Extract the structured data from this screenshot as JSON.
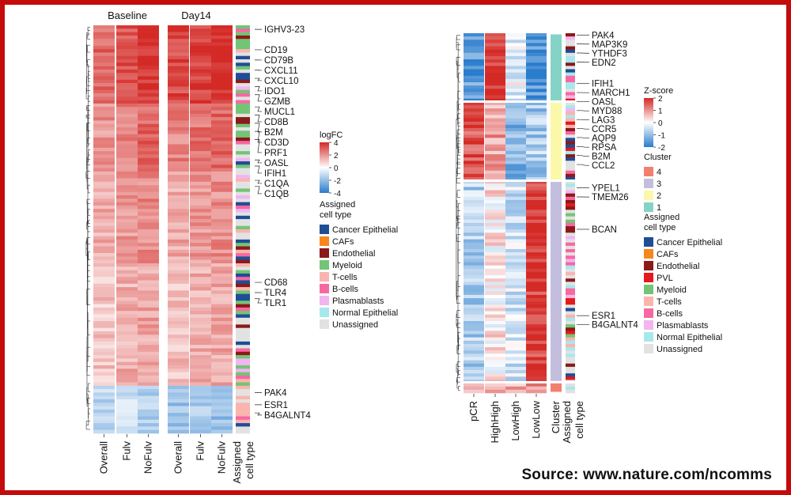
{
  "source": "Source: www.nature.com/ncomms",
  "colors": {
    "frame": "#c40b0b",
    "heat_high": "#d42a26",
    "heat_mid": "#ffffff",
    "heat_low": "#2a7ccd",
    "cell_types": {
      "Cancer Epithelial": "#1f4e96",
      "CAFs": "#f7861c",
      "Endothelial": "#8b1a1a",
      "PVL": "#e41a1c",
      "Myeloid": "#74c476",
      "T-cells": "#fbb4ae",
      "B-cells": "#f768a1",
      "Plasmablasts": "#f2b5f0",
      "Normal Epithelial": "#a6e8ee",
      "Unassigned": "#e2e2e2"
    },
    "clusters": {
      "4": "#f47f6e",
      "3": "#c3bede",
      "2": "#fbf8aa",
      "1": "#85d3c6"
    }
  },
  "chart_data": [
    {
      "type": "heatmap",
      "panel": "left",
      "title_groups": [
        "Baseline",
        "Day14"
      ],
      "columns": [
        "Overall",
        "Fulv",
        "NoFulv"
      ],
      "annotation_column_label": "Assigned\ncell type",
      "legend": {
        "title": "logFC",
        "ticks": [
          4,
          2,
          0,
          -2,
          -4
        ],
        "range": [
          -4,
          4
        ]
      },
      "celltype_legend_title": "Assigned\ncell type",
      "celltype_legend": [
        "Cancer Epithelial",
        "CAFs",
        "Endothelial",
        "Myeloid",
        "T-cells",
        "B-cells",
        "Plasmablasts",
        "Normal Epithelial",
        "Unassigned"
      ],
      "blocks": [
        {
          "end": 0.19,
          "base": [
            2.8,
            3.2,
            3.8
          ],
          "day": [
            3.4,
            3.6,
            3.9
          ]
        },
        {
          "end": 0.36,
          "base": [
            2.0,
            2.4,
            2.9
          ],
          "day": [
            2.3,
            2.6,
            2.9
          ]
        },
        {
          "end": 0.58,
          "base": [
            1.5,
            1.9,
            2.2
          ],
          "day": [
            1.6,
            1.9,
            2.1
          ]
        },
        {
          "end": 0.88,
          "base": [
            1.1,
            1.5,
            1.7
          ],
          "day": [
            1.2,
            1.5,
            1.6
          ]
        },
        {
          "end": 1.0,
          "base": [
            -1.2,
            -0.8,
            -1.4
          ],
          "day": [
            -1.8,
            -1.5,
            -2.0
          ]
        }
      ],
      "gene_labels": [
        {
          "gene": "IGHV3-23",
          "row": 0.01
        },
        {
          "gene": "CD19",
          "row": 0.06
        },
        {
          "gene": "CD79B",
          "row": 0.085
        },
        {
          "gene": "CXCL11",
          "row": 0.11
        },
        {
          "gene": "CXCL10",
          "row": 0.13
        },
        {
          "gene": "IDO1",
          "row": 0.15
        },
        {
          "gene": "GZMB",
          "row": 0.17
        },
        {
          "gene": "MUCL1",
          "row": 0.2
        },
        {
          "gene": "CD8B",
          "row": 0.22
        },
        {
          "gene": "B2M",
          "row": 0.24
        },
        {
          "gene": "CD3D",
          "row": 0.26
        },
        {
          "gene": "PRF1",
          "row": 0.28
        },
        {
          "gene": "OASL",
          "row": 0.33
        },
        {
          "gene": "IFIH1",
          "row": 0.345
        },
        {
          "gene": "C1QA",
          "row": 0.38
        },
        {
          "gene": "C1QB",
          "row": 0.395
        },
        {
          "gene": "CD68",
          "row": 0.63
        },
        {
          "gene": "TLR4",
          "row": 0.655
        },
        {
          "gene": "TLR1",
          "row": 0.67
        },
        {
          "gene": "PAK4",
          "row": 0.9
        },
        {
          "gene": "ESR1",
          "row": 0.93
        },
        {
          "gene": "B4GALNT4",
          "row": 0.95
        }
      ]
    },
    {
      "type": "heatmap",
      "panel": "right",
      "columns": [
        "pCR",
        "HighHigh",
        "LowHigh",
        "LowLow"
      ],
      "annotation_columns": [
        "Cluster",
        "Assigned\ncell type"
      ],
      "legend": {
        "title": "Z-score",
        "ticks": [
          2,
          1,
          0,
          -1,
          -2
        ],
        "range": [
          -2,
          2
        ]
      },
      "cluster_legend": {
        "title": "Cluster",
        "items": [
          "4",
          "3",
          "2",
          "1"
        ]
      },
      "celltype_legend_title": "Assigned\ncell type",
      "celltype_legend": [
        "Cancer Epithelial",
        "CAFs",
        "Endothelial",
        "PVL",
        "Myeloid",
        "T-cells",
        "B-cells",
        "Plasmablasts",
        "Normal Epithelial",
        "Unassigned"
      ],
      "clusters": [
        {
          "cluster": "1",
          "end": 0.19,
          "z": [
            -1.5,
            1.8,
            -0.2,
            -1.6
          ]
        },
        {
          "cluster": "2",
          "end": 0.41,
          "z": [
            1.7,
            0.9,
            -1.1,
            -0.8
          ]
        },
        {
          "cluster": "3",
          "end": 0.97,
          "z": [
            -0.7,
            0.2,
            -0.4,
            1.9
          ]
        },
        {
          "cluster": "4",
          "end": 1.0,
          "z": [
            0.3,
            0.6,
            0.8,
            0.9
          ]
        }
      ],
      "gene_labels": [
        {
          "gene": "PAK4",
          "row": 0.005
        },
        {
          "gene": "MAP3K9",
          "row": 0.03
        },
        {
          "gene": "YTHDF3",
          "row": 0.055
        },
        {
          "gene": "EDN2",
          "row": 0.08
        },
        {
          "gene": "IFIH1",
          "row": 0.14
        },
        {
          "gene": "MARCH1",
          "row": 0.165
        },
        {
          "gene": "OASL",
          "row": 0.19
        },
        {
          "gene": "MYD88",
          "row": 0.215
        },
        {
          "gene": "LAG3",
          "row": 0.24
        },
        {
          "gene": "CCR5",
          "row": 0.265
        },
        {
          "gene": "AQP9",
          "row": 0.29
        },
        {
          "gene": "RPSA",
          "row": 0.315
        },
        {
          "gene": "B2M",
          "row": 0.34
        },
        {
          "gene": "CCL2",
          "row": 0.365
        },
        {
          "gene": "YPEL1",
          "row": 0.43
        },
        {
          "gene": "TMEM26",
          "row": 0.455
        },
        {
          "gene": "BCAN",
          "row": 0.545
        },
        {
          "gene": "ESR1",
          "row": 0.785
        },
        {
          "gene": "B4GALNT4",
          "row": 0.81
        }
      ]
    }
  ]
}
